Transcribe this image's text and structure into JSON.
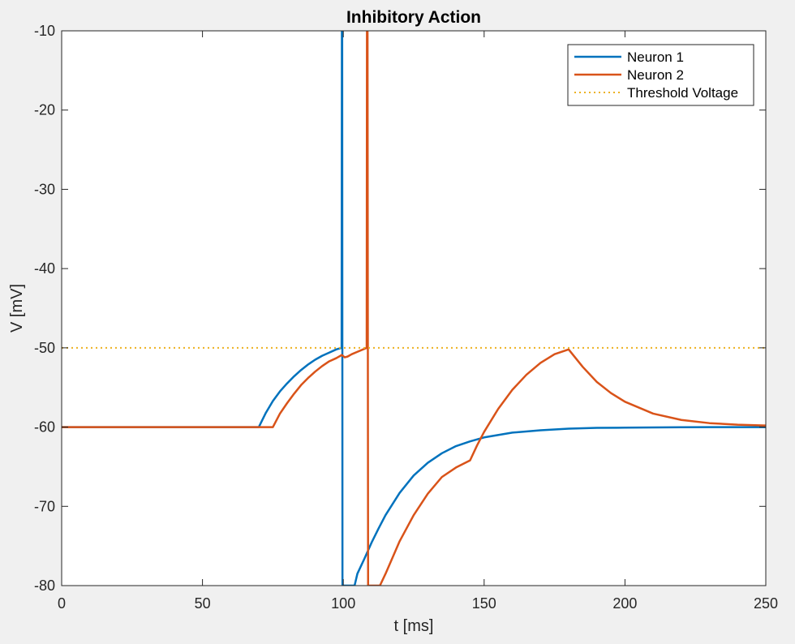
{
  "chart_data": {
    "type": "line",
    "title": "Inhibitory Action",
    "xlabel": "t [ms]",
    "ylabel": "V [mV]",
    "xlim": [
      0,
      250
    ],
    "ylim": [
      -80,
      -10
    ],
    "xticks": [
      0,
      50,
      100,
      150,
      200,
      250
    ],
    "yticks": [
      -80,
      -70,
      -60,
      -50,
      -40,
      -30,
      -20,
      -10
    ],
    "grid": false,
    "legend_position": "top-right",
    "series": [
      {
        "name": "Neuron 1",
        "color": "#0072BD",
        "style": "solid",
        "x": [
          0,
          70,
          72.5,
          75,
          77.5,
          80,
          82.5,
          85,
          87.5,
          90,
          92.5,
          95,
          97.5,
          99.4,
          99.5,
          99.6,
          99.7,
          100,
          104,
          105,
          107.5,
          110,
          112.5,
          115,
          120,
          125,
          130,
          135,
          140,
          145,
          150,
          160,
          170,
          180,
          190,
          200,
          210,
          220,
          230,
          240,
          250
        ],
        "y": [
          -60,
          -60,
          -58.2,
          -56.7,
          -55.5,
          -54.5,
          -53.6,
          -52.8,
          -52.1,
          -51.5,
          -51.0,
          -50.6,
          -50.2,
          -50.0,
          -10,
          -10,
          -80,
          -80,
          -80,
          -78.5,
          -76.6,
          -74.6,
          -72.8,
          -71.1,
          -68.3,
          -66.1,
          -64.5,
          -63.3,
          -62.4,
          -61.8,
          -61.3,
          -60.7,
          -60.4,
          -60.2,
          -60.1,
          -60.07,
          -60.04,
          -60.02,
          -60.01,
          -60.0,
          -60.0
        ]
      },
      {
        "name": "Neuron 2",
        "color": "#D95319",
        "style": "solid",
        "x": [
          0,
          75,
          77.5,
          80,
          82.5,
          85,
          87.5,
          90,
          92.5,
          95,
          97.5,
          99.5,
          100.5,
          101.5,
          103,
          105,
          107,
          108.3,
          108.4,
          108.6,
          108.8,
          113,
          115,
          120,
          125,
          130,
          135,
          140,
          145,
          147.5,
          150,
          155,
          160,
          165,
          170,
          175,
          180,
          185,
          190,
          195,
          200,
          210,
          220,
          230,
          240,
          250
        ],
        "y": [
          -60,
          -60,
          -58.3,
          -57.0,
          -55.8,
          -54.7,
          -53.8,
          -53.0,
          -52.3,
          -51.7,
          -51.3,
          -50.9,
          -51.2,
          -51.1,
          -50.8,
          -50.5,
          -50.2,
          -50.0,
          -10,
          -10,
          -80,
          -80,
          -78.5,
          -74.4,
          -71.1,
          -68.4,
          -66.3,
          -65.1,
          -64.2,
          -62.3,
          -60.6,
          -57.7,
          -55.3,
          -53.4,
          -51.9,
          -50.8,
          -50.2,
          -52.4,
          -54.3,
          -55.7,
          -56.8,
          -58.3,
          -59.1,
          -59.5,
          -59.7,
          -59.8
        ]
      },
      {
        "name": "Threshold Voltage",
        "color": "#EDB120",
        "style": "dotted",
        "x": [
          0,
          250
        ],
        "y": [
          -50,
          -50
        ]
      }
    ]
  }
}
